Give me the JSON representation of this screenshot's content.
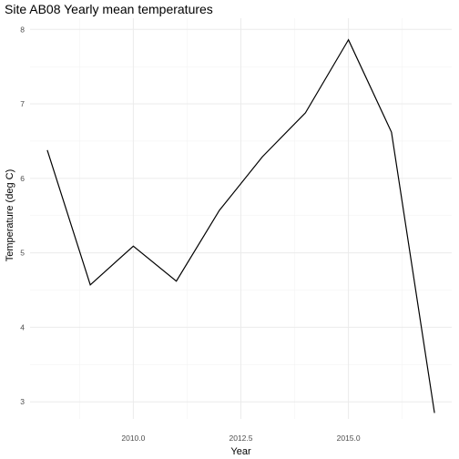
{
  "chart_data": {
    "type": "line",
    "title": "Site AB08 Yearly mean temperatures",
    "xlabel": "Year",
    "ylabel": "Temperature (deg C)",
    "x": [
      2008,
      2009,
      2010,
      2011,
      2012,
      2013,
      2014,
      2015,
      2016,
      2017
    ],
    "series": [
      {
        "values": [
          6.38,
          4.57,
          5.09,
          4.62,
          5.57,
          6.29,
          6.88,
          7.86,
          6.62,
          2.85
        ]
      }
    ],
    "xlim": [
      2007.6,
      2017.4
    ],
    "ylim": [
      2.77,
      8.15
    ],
    "x_ticks": [
      2010.0,
      2012.5,
      2015.0
    ],
    "x_tick_labels": [
      "2010.0",
      "2012.5",
      "2015.0"
    ],
    "x_minor_ticks": [
      2008.75,
      2011.25,
      2013.75,
      2016.25
    ],
    "y_ticks": [
      3,
      4,
      5,
      6,
      7,
      8
    ],
    "y_tick_labels": [
      "3",
      "4",
      "5",
      "6",
      "7",
      "8"
    ],
    "y_minor_ticks": [
      3.5,
      4.5,
      5.5,
      6.5,
      7.5
    ],
    "grid": true,
    "line_color": "#000000",
    "grid_color": "#ebebeb",
    "background": "#ffffff"
  }
}
